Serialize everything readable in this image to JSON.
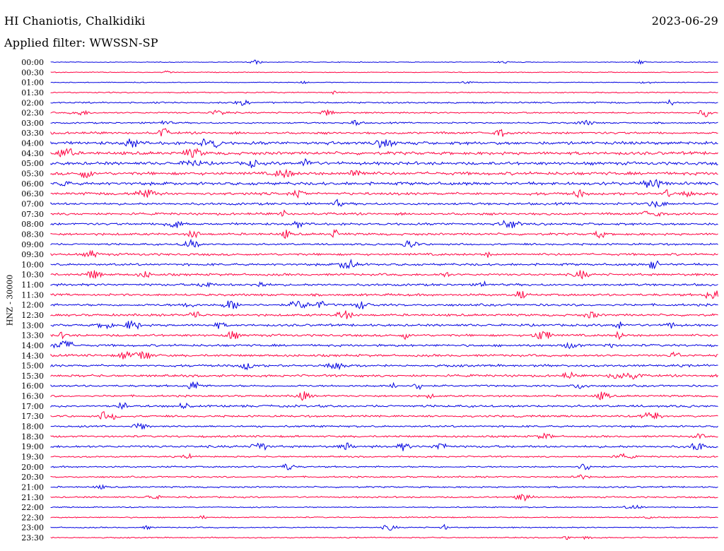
{
  "header": {
    "station": "HI Chaniotis, Chalkidiki",
    "date": "2023-06-29",
    "filter": "Applied filter: WWSSN-SP"
  },
  "channel_label": "HNZ - 30000",
  "colors": {
    "odd_trace": "#0000e0",
    "even_trace": "#ff0040"
  },
  "chart_data": {
    "type": "line",
    "title": "HI Chaniotis, Chalkidiki",
    "subtitle": "Applied filter: WWSSN-SP",
    "ylabel": "HNZ - 30000",
    "xlabel": "",
    "grid": false,
    "legend": "none",
    "tick_labels": [
      "00:00",
      "00:30",
      "01:00",
      "01:30",
      "02:00",
      "02:30",
      "03:00",
      "03:30",
      "04:00",
      "04:30",
      "05:00",
      "05:30",
      "06:00",
      "06:30",
      "07:00",
      "07:30",
      "08:00",
      "08:30",
      "09:00",
      "09:30",
      "10:00",
      "10:30",
      "11:00",
      "11:30",
      "12:00",
      "12:30",
      "13:00",
      "13:30",
      "14:00",
      "14:30",
      "15:00",
      "15:30",
      "16:00",
      "16:30",
      "17:00",
      "17:30",
      "18:00",
      "18:30",
      "19:00",
      "19:30",
      "20:00",
      "20:30",
      "21:00",
      "21:30",
      "22:00",
      "22:30",
      "23:00",
      "23:30"
    ],
    "series": [
      {
        "level": 1
      },
      {
        "level": 1
      },
      {
        "level": 1
      },
      {
        "level": 1.5
      },
      {
        "level": 2
      },
      {
        "level": 2
      },
      {
        "level": 2
      },
      {
        "level": 3
      },
      {
        "level": 4
      },
      {
        "level": 4
      },
      {
        "level": 4
      },
      {
        "level": 4
      },
      {
        "level": 4
      },
      {
        "level": 3.5
      },
      {
        "level": 3
      },
      {
        "level": 3
      },
      {
        "level": 3
      },
      {
        "level": 3
      },
      {
        "level": 2.5
      },
      {
        "level": 3
      },
      {
        "level": 3
      },
      {
        "level": 3
      },
      {
        "level": 3
      },
      {
        "level": 3
      },
      {
        "level": 3
      },
      {
        "level": 3
      },
      {
        "level": 3
      },
      {
        "level": 3
      },
      {
        "level": 3
      },
      {
        "level": 3
      },
      {
        "level": 3
      },
      {
        "level": 3
      },
      {
        "level": 2.5
      },
      {
        "level": 2.5
      },
      {
        "level": 3
      },
      {
        "level": 2.5
      },
      {
        "level": 2.5
      },
      {
        "level": 2.5
      },
      {
        "level": 3
      },
      {
        "level": 2
      },
      {
        "level": 2
      },
      {
        "level": 2
      },
      {
        "level": 2
      },
      {
        "level": 2
      },
      {
        "level": 1.5
      },
      {
        "level": 1.5
      },
      {
        "level": 1.5
      },
      {
        "level": 1.5
      }
    ]
  }
}
